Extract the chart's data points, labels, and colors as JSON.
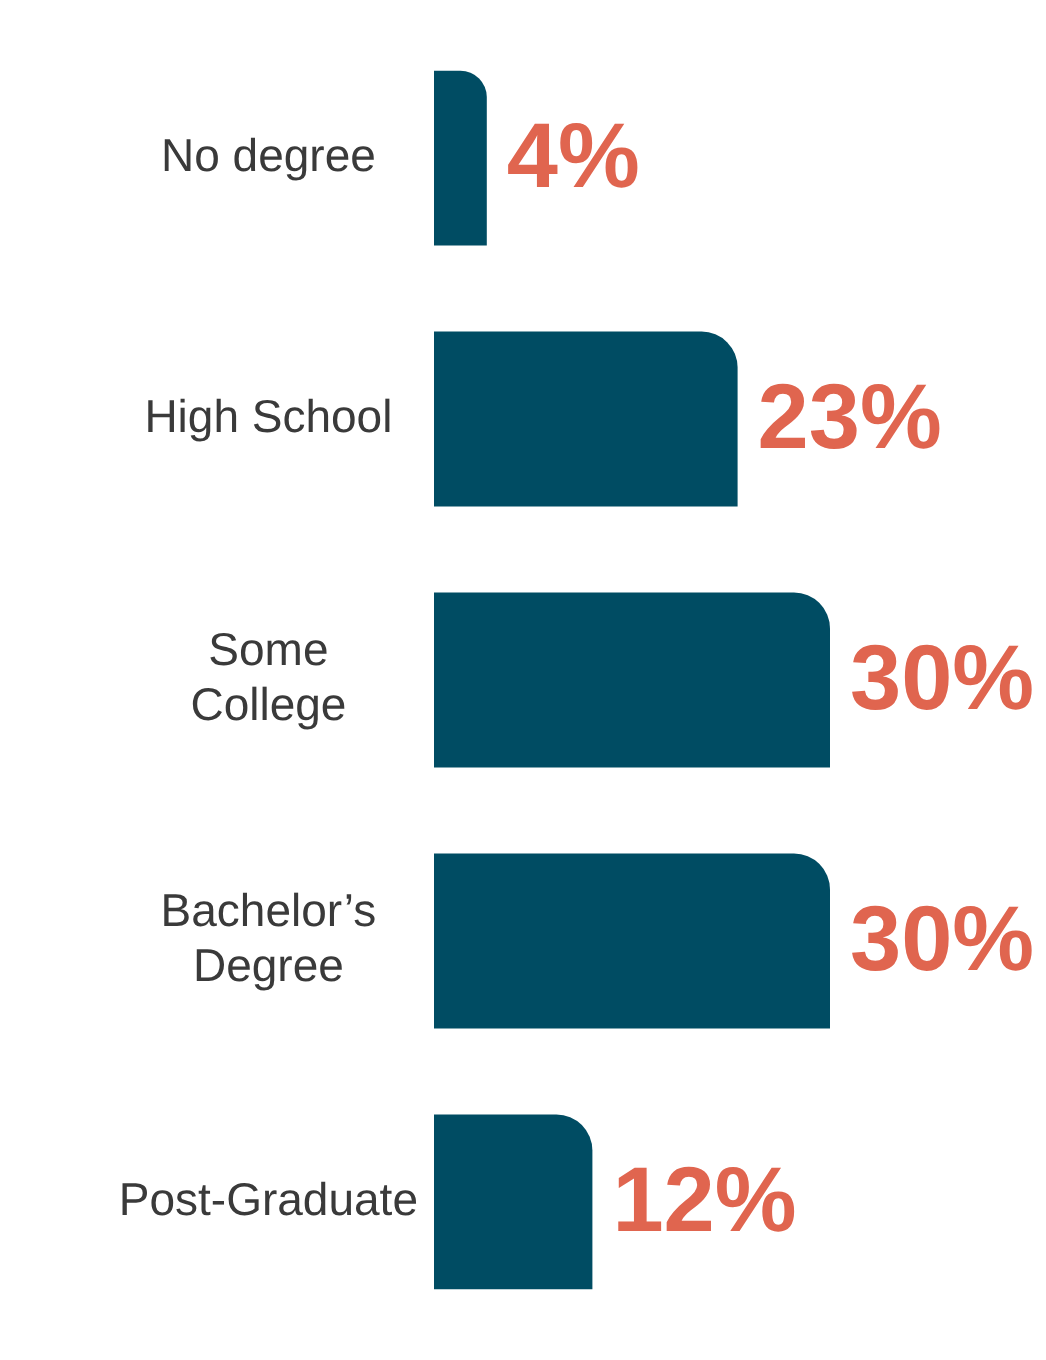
{
  "chart_data": {
    "type": "bar",
    "orientation": "horizontal",
    "categories": [
      "No degree",
      "High School",
      "Some\nCollege",
      "Bachelor’s\nDegree",
      "Post-Graduate"
    ],
    "values": [
      4,
      23,
      30,
      30,
      12
    ],
    "color": "#004c63",
    "data_labels": true,
    "value_labels": [
      "4%",
      "23%",
      "30%",
      "30%",
      "12%"
    ],
    "legend": false
  }
}
